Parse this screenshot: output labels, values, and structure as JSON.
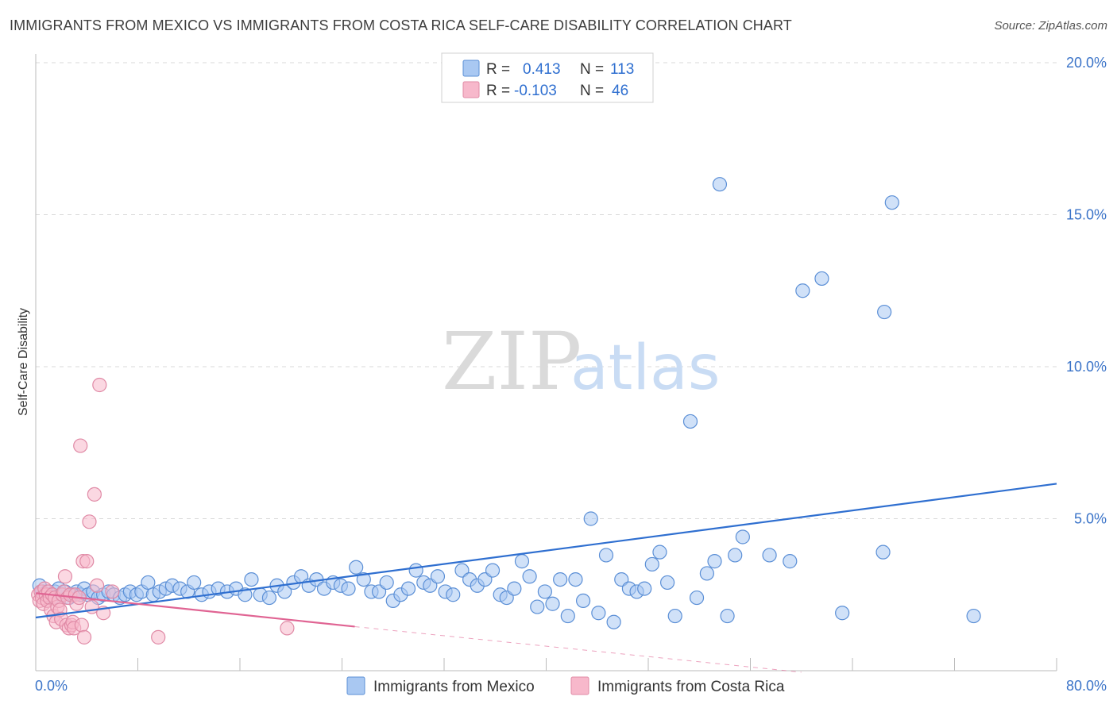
{
  "title": "IMMIGRANTS FROM MEXICO VS IMMIGRANTS FROM COSTA RICA SELF-CARE DISABILITY CORRELATION CHART",
  "source": "Source: ZipAtlas.com",
  "watermark": {
    "zip": "ZIP",
    "atlas": "atlas"
  },
  "colors": {
    "mexico_fill": "#a9c8f2",
    "mexico_stroke": "#5b8fd6",
    "mexico_line": "#2f6fd0",
    "costa_fill": "#f7b8cb",
    "costa_stroke": "#e08aa6",
    "costa_line": "#e06493",
    "grid": "#d8d8d8",
    "tick_text": "#3a73c8"
  },
  "legend": {
    "rows": [
      {
        "r_label": "R =",
        "r_value": "0.413",
        "n_label": "N =",
        "n_value": "113"
      },
      {
        "r_label": "R =",
        "r_value": "-0.103",
        "n_label": "N =",
        "n_value": "46"
      }
    ]
  },
  "chart_data": {
    "type": "scatter",
    "title": "IMMIGRANTS FROM MEXICO VS IMMIGRANTS FROM COSTA RICA SELF-CARE DISABILITY CORRELATION CHART",
    "xlabel": "",
    "ylabel": "Self-Care Disability",
    "xlim": [
      0,
      80
    ],
    "ylim": [
      0,
      20
    ],
    "x_tick_labels": [
      "0.0%",
      "80.0%"
    ],
    "y_ticks": [
      5,
      10,
      15,
      20
    ],
    "y_tick_labels": [
      "5.0%",
      "10.0%",
      "15.0%",
      "20.0%"
    ],
    "grid": true,
    "series": [
      {
        "name": "Immigrants from Mexico",
        "r": 0.413,
        "n": 113,
        "trend": {
          "x0": 0,
          "y0": 1.75,
          "x1": 80,
          "y1": 6.15
        },
        "points": [
          [
            0.3,
            2.8
          ],
          [
            0.5,
            2.6
          ],
          [
            0.7,
            2.5
          ],
          [
            0.9,
            2.6
          ],
          [
            1.1,
            2.5
          ],
          [
            1.3,
            2.4
          ],
          [
            1.5,
            2.6
          ],
          [
            1.8,
            2.7
          ],
          [
            2.0,
            2.5
          ],
          [
            2.3,
            2.6
          ],
          [
            2.6,
            2.4
          ],
          [
            2.9,
            2.5
          ],
          [
            3.2,
            2.6
          ],
          [
            3.5,
            2.5
          ],
          [
            3.8,
            2.7
          ],
          [
            4.1,
            2.5
          ],
          [
            4.5,
            2.6
          ],
          [
            4.9,
            2.4
          ],
          [
            5.3,
            2.5
          ],
          [
            5.7,
            2.6
          ],
          [
            6.1,
            2.5
          ],
          [
            6.6,
            2.4
          ],
          [
            7.0,
            2.5
          ],
          [
            7.4,
            2.6
          ],
          [
            7.9,
            2.5
          ],
          [
            8.3,
            2.6
          ],
          [
            8.8,
            2.9
          ],
          [
            9.2,
            2.5
          ],
          [
            9.7,
            2.6
          ],
          [
            10.2,
            2.7
          ],
          [
            10.7,
            2.8
          ],
          [
            11.3,
            2.7
          ],
          [
            11.9,
            2.6
          ],
          [
            12.4,
            2.9
          ],
          [
            13.0,
            2.5
          ],
          [
            13.6,
            2.6
          ],
          [
            14.3,
            2.7
          ],
          [
            15.0,
            2.6
          ],
          [
            15.7,
            2.7
          ],
          [
            16.4,
            2.5
          ],
          [
            16.9,
            3.0
          ],
          [
            17.6,
            2.5
          ],
          [
            18.3,
            2.4
          ],
          [
            18.9,
            2.8
          ],
          [
            19.5,
            2.6
          ],
          [
            20.2,
            2.9
          ],
          [
            20.8,
            3.1
          ],
          [
            21.4,
            2.8
          ],
          [
            22.0,
            3.0
          ],
          [
            22.6,
            2.7
          ],
          [
            23.3,
            2.9
          ],
          [
            23.9,
            2.8
          ],
          [
            24.5,
            2.7
          ],
          [
            25.1,
            3.4
          ],
          [
            25.7,
            3.0
          ],
          [
            26.3,
            2.6
          ],
          [
            26.9,
            2.6
          ],
          [
            27.5,
            2.9
          ],
          [
            28.0,
            2.3
          ],
          [
            28.6,
            2.5
          ],
          [
            29.2,
            2.7
          ],
          [
            29.8,
            3.3
          ],
          [
            30.4,
            2.9
          ],
          [
            30.9,
            2.8
          ],
          [
            31.5,
            3.1
          ],
          [
            32.1,
            2.6
          ],
          [
            32.7,
            2.5
          ],
          [
            33.4,
            3.3
          ],
          [
            34.0,
            3.0
          ],
          [
            34.6,
            2.8
          ],
          [
            35.2,
            3.0
          ],
          [
            35.8,
            3.3
          ],
          [
            36.4,
            2.5
          ],
          [
            36.9,
            2.4
          ],
          [
            37.5,
            2.7
          ],
          [
            38.1,
            3.6
          ],
          [
            38.7,
            3.1
          ],
          [
            39.3,
            2.1
          ],
          [
            39.9,
            2.6
          ],
          [
            40.5,
            2.2
          ],
          [
            41.1,
            3.0
          ],
          [
            41.7,
            1.8
          ],
          [
            42.3,
            3.0
          ],
          [
            42.9,
            2.3
          ],
          [
            43.5,
            5.0
          ],
          [
            44.1,
            1.9
          ],
          [
            44.7,
            3.8
          ],
          [
            45.3,
            1.6
          ],
          [
            45.9,
            3.0
          ],
          [
            46.5,
            2.7
          ],
          [
            47.1,
            2.6
          ],
          [
            47.7,
            2.7
          ],
          [
            48.3,
            3.5
          ],
          [
            48.9,
            3.9
          ],
          [
            49.5,
            2.9
          ],
          [
            50.1,
            1.8
          ],
          [
            51.3,
            8.2
          ],
          [
            51.8,
            2.4
          ],
          [
            52.6,
            3.2
          ],
          [
            53.2,
            3.6
          ],
          [
            53.6,
            16.0
          ],
          [
            54.2,
            1.8
          ],
          [
            54.8,
            3.8
          ],
          [
            55.4,
            4.4
          ],
          [
            57.5,
            3.8
          ],
          [
            59.1,
            3.6
          ],
          [
            60.1,
            12.5
          ],
          [
            61.6,
            12.9
          ],
          [
            63.2,
            1.9
          ],
          [
            66.4,
            3.9
          ],
          [
            66.5,
            11.8
          ],
          [
            67.1,
            15.4
          ],
          [
            73.5,
            1.8
          ]
        ]
      },
      {
        "name": "Immigrants from Costa Rica",
        "r": -0.103,
        "n": 46,
        "trend": {
          "x0": 0,
          "y0": 2.55,
          "x1": 25,
          "y1": 1.45
        },
        "trend_dashed": {
          "x0": 25,
          "y0": 1.45,
          "x1": 60,
          "y1": -0.05
        },
        "points": [
          [
            0.2,
            2.5
          ],
          [
            0.3,
            2.3
          ],
          [
            0.4,
            2.6
          ],
          [
            0.5,
            2.4
          ],
          [
            0.6,
            2.2
          ],
          [
            0.7,
            2.7
          ],
          [
            0.8,
            2.5
          ],
          [
            0.9,
            2.3
          ],
          [
            1.0,
            2.6
          ],
          [
            1.1,
            2.4
          ],
          [
            1.2,
            2.0
          ],
          [
            1.3,
            2.5
          ],
          [
            1.4,
            1.8
          ],
          [
            1.5,
            2.4
          ],
          [
            1.6,
            1.6
          ],
          [
            1.7,
            2.1
          ],
          [
            1.8,
            2.3
          ],
          [
            1.9,
            2.0
          ],
          [
            2.0,
            1.7
          ],
          [
            2.1,
            2.5
          ],
          [
            2.2,
            2.6
          ],
          [
            2.3,
            3.1
          ],
          [
            2.4,
            1.5
          ],
          [
            2.5,
            2.4
          ],
          [
            2.6,
            1.4
          ],
          [
            2.7,
            2.5
          ],
          [
            2.8,
            1.5
          ],
          [
            2.9,
            1.6
          ],
          [
            3.0,
            1.4
          ],
          [
            3.1,
            2.5
          ],
          [
            3.2,
            2.2
          ],
          [
            3.4,
            2.4
          ],
          [
            3.5,
            7.4
          ],
          [
            3.6,
            1.5
          ],
          [
            3.7,
            3.6
          ],
          [
            3.8,
            1.1
          ],
          [
            4.0,
            3.6
          ],
          [
            4.2,
            4.9
          ],
          [
            4.4,
            2.1
          ],
          [
            4.6,
            5.8
          ],
          [
            4.8,
            2.8
          ],
          [
            5.0,
            9.4
          ],
          [
            5.3,
            1.9
          ],
          [
            6.0,
            2.6
          ],
          [
            9.6,
            1.1
          ],
          [
            19.7,
            1.4
          ]
        ]
      }
    ]
  },
  "bottom_legend": [
    "Immigrants from Mexico",
    "Immigrants from Costa Rica"
  ]
}
